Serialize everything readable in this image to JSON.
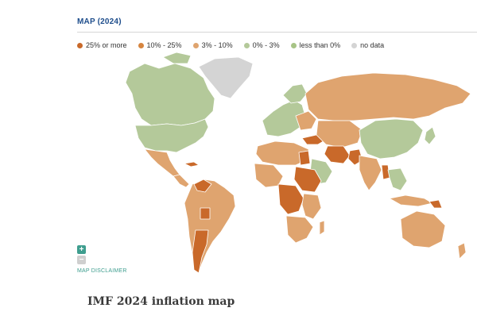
{
  "map_title": "MAP (2024)",
  "legend": [
    {
      "label": "25% or more",
      "color": "#c9692a"
    },
    {
      "label": "10% - 25%",
      "color": "#d6853f"
    },
    {
      "label": "3% - 10%",
      "color": "#dfa46f"
    },
    {
      "label": "0% - 3%",
      "color": "#b4c99a"
    },
    {
      "label": "less than 0%",
      "color": "#a7c486"
    },
    {
      "label": "no data",
      "color": "#d4d4d4"
    }
  ],
  "controls": {
    "zoom_in": "+",
    "zoom_out": "−",
    "disclaimer": "MAP DISCLAIMER"
  },
  "caption": "IMF 2024 inflation map",
  "colors": {
    "high": "#c9692a",
    "mid": "#dfa46f",
    "low": "#b4c99a",
    "nodata": "#d4d4d4",
    "border": "#ffffff"
  }
}
